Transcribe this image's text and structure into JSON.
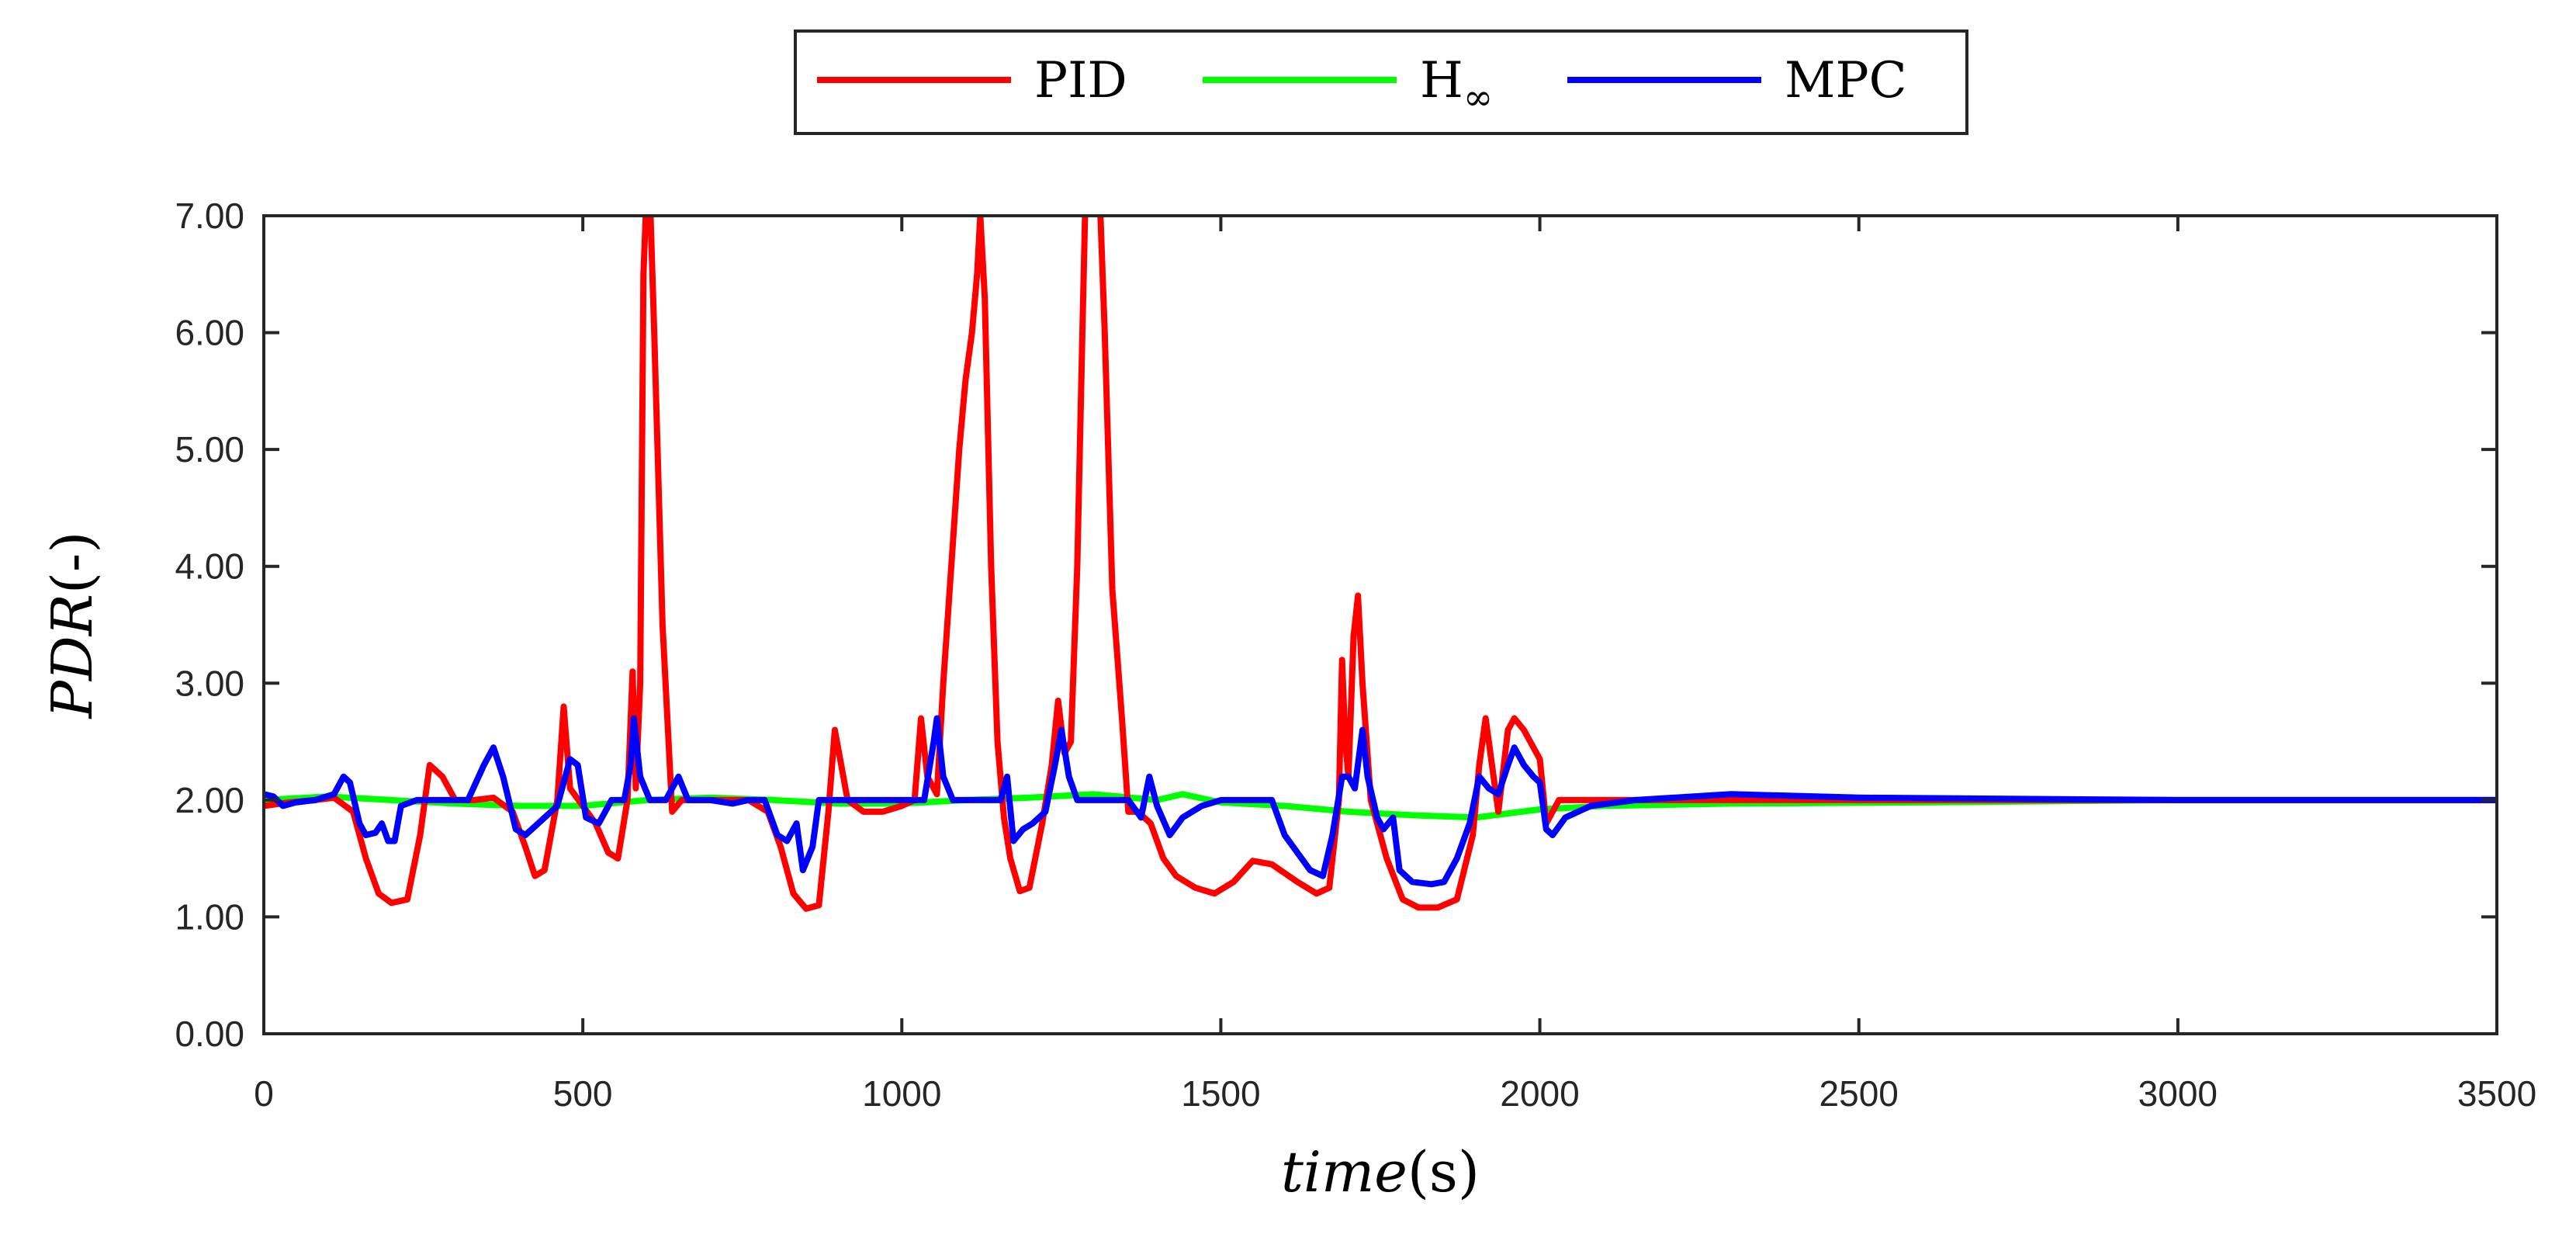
{
  "chart_data": {
    "type": "line",
    "title": "",
    "xlabel": {
      "italic": "time",
      "unit": "(s)"
    },
    "ylabel": {
      "italic": "PDR",
      "unit": "(-)"
    },
    "xlim": [
      0,
      3500
    ],
    "ylim": [
      0,
      7
    ],
    "xticks": [
      0,
      500,
      1000,
      1500,
      2000,
      2500,
      3000,
      3500
    ],
    "yticks": [
      0,
      1,
      2,
      3,
      4,
      5,
      6,
      7
    ],
    "xtick_labels": [
      "0",
      "500",
      "1000",
      "1500",
      "2000",
      "2500",
      "3000",
      "3500"
    ],
    "ytick_labels": [
      "0.00",
      "1.00",
      "2.00",
      "3.00",
      "4.00",
      "5.00",
      "6.00",
      "7.00"
    ],
    "grid": false,
    "legend": {
      "placement": "top-center",
      "entries": [
        {
          "label": "PID",
          "subscript": ""
        },
        {
          "label": "H",
          "subscript": "∞"
        },
        {
          "label": "MPC",
          "subscript": ""
        }
      ]
    },
    "series": [
      {
        "name": "PID",
        "color": "#ff0000",
        "points": [
          [
            0,
            1.95
          ],
          [
            40,
            1.98
          ],
          [
            80,
            2.0
          ],
          [
            110,
            2.02
          ],
          [
            140,
            1.9
          ],
          [
            160,
            1.5
          ],
          [
            180,
            1.2
          ],
          [
            200,
            1.12
          ],
          [
            225,
            1.15
          ],
          [
            245,
            1.7
          ],
          [
            260,
            2.3
          ],
          [
            280,
            2.2
          ],
          [
            300,
            2.0
          ],
          [
            330,
            2.0
          ],
          [
            360,
            2.02
          ],
          [
            390,
            1.9
          ],
          [
            410,
            1.6
          ],
          [
            425,
            1.35
          ],
          [
            440,
            1.4
          ],
          [
            460,
            2.0
          ],
          [
            470,
            2.8
          ],
          [
            480,
            2.1
          ],
          [
            500,
            1.95
          ],
          [
            520,
            1.8
          ],
          [
            540,
            1.55
          ],
          [
            555,
            1.5
          ],
          [
            570,
            2.0
          ],
          [
            578,
            3.1
          ],
          [
            583,
            2.1
          ],
          [
            590,
            3.0
          ],
          [
            595,
            6.5
          ],
          [
            600,
            7.2
          ],
          [
            605,
            7.2
          ],
          [
            612,
            6.0
          ],
          [
            625,
            3.5
          ],
          [
            640,
            1.9
          ],
          [
            655,
            2.0
          ],
          [
            700,
            2.0
          ],
          [
            760,
            2.0
          ],
          [
            790,
            1.9
          ],
          [
            810,
            1.6
          ],
          [
            830,
            1.2
          ],
          [
            850,
            1.07
          ],
          [
            870,
            1.1
          ],
          [
            885,
            1.9
          ],
          [
            895,
            2.6
          ],
          [
            905,
            2.3
          ],
          [
            915,
            2.0
          ],
          [
            940,
            1.9
          ],
          [
            970,
            1.9
          ],
          [
            1000,
            1.95
          ],
          [
            1020,
            2.0
          ],
          [
            1030,
            2.7
          ],
          [
            1040,
            2.2
          ],
          [
            1055,
            2.05
          ],
          [
            1065,
            3.0
          ],
          [
            1080,
            4.2
          ],
          [
            1090,
            5.0
          ],
          [
            1100,
            5.6
          ],
          [
            1110,
            6.0
          ],
          [
            1118,
            6.5
          ],
          [
            1123,
            7.0
          ],
          [
            1130,
            6.3
          ],
          [
            1140,
            4.0
          ],
          [
            1150,
            2.5
          ],
          [
            1160,
            1.85
          ],
          [
            1170,
            1.5
          ],
          [
            1185,
            1.22
          ],
          [
            1200,
            1.25
          ],
          [
            1220,
            1.8
          ],
          [
            1235,
            2.3
          ],
          [
            1245,
            2.85
          ],
          [
            1255,
            2.4
          ],
          [
            1265,
            2.5
          ],
          [
            1275,
            4.0
          ],
          [
            1283,
            6.0
          ],
          [
            1288,
            7.2
          ],
          [
            1300,
            7.2
          ],
          [
            1310,
            7.2
          ],
          [
            1318,
            6.0
          ],
          [
            1330,
            3.8
          ],
          [
            1345,
            2.7
          ],
          [
            1355,
            1.9
          ],
          [
            1370,
            1.9
          ],
          [
            1390,
            1.8
          ],
          [
            1410,
            1.5
          ],
          [
            1430,
            1.35
          ],
          [
            1460,
            1.25
          ],
          [
            1490,
            1.2
          ],
          [
            1520,
            1.3
          ],
          [
            1550,
            1.48
          ],
          [
            1580,
            1.45
          ],
          [
            1620,
            1.3
          ],
          [
            1650,
            1.2
          ],
          [
            1670,
            1.25
          ],
          [
            1685,
            2.0
          ],
          [
            1690,
            3.2
          ],
          [
            1695,
            2.5
          ],
          [
            1700,
            2.2
          ],
          [
            1708,
            3.4
          ],
          [
            1715,
            3.75
          ],
          [
            1722,
            3.0
          ],
          [
            1735,
            2.0
          ],
          [
            1760,
            1.5
          ],
          [
            1785,
            1.15
          ],
          [
            1810,
            1.08
          ],
          [
            1840,
            1.08
          ],
          [
            1870,
            1.15
          ],
          [
            1895,
            1.7
          ],
          [
            1905,
            2.3
          ],
          [
            1915,
            2.7
          ],
          [
            1925,
            2.3
          ],
          [
            1935,
            1.9
          ],
          [
            1950,
            2.6
          ],
          [
            1960,
            2.7
          ],
          [
            1975,
            2.6
          ],
          [
            1990,
            2.45
          ],
          [
            2000,
            2.35
          ],
          [
            2010,
            1.8
          ],
          [
            2030,
            2.0
          ],
          [
            2060,
            2.0
          ],
          [
            2100,
            2.0
          ],
          [
            2200,
            2.0
          ],
          [
            3500,
            2.0
          ]
        ]
      },
      {
        "name": "H∞",
        "color": "#00ff00",
        "points": [
          [
            0,
            2.0
          ],
          [
            100,
            2.03
          ],
          [
            200,
            2.0
          ],
          [
            300,
            1.97
          ],
          [
            400,
            1.95
          ],
          [
            500,
            1.95
          ],
          [
            600,
            2.0
          ],
          [
            700,
            2.02
          ],
          [
            800,
            2.0
          ],
          [
            900,
            1.97
          ],
          [
            1000,
            1.97
          ],
          [
            1100,
            2.0
          ],
          [
            1200,
            2.02
          ],
          [
            1300,
            2.05
          ],
          [
            1400,
            2.0
          ],
          [
            1440,
            2.05
          ],
          [
            1500,
            1.98
          ],
          [
            1600,
            1.95
          ],
          [
            1700,
            1.9
          ],
          [
            1800,
            1.87
          ],
          [
            1900,
            1.85
          ],
          [
            2000,
            1.92
          ],
          [
            2100,
            1.95
          ],
          [
            2300,
            1.97
          ],
          [
            2600,
            1.98
          ],
          [
            3000,
            2.0
          ],
          [
            3500,
            2.0
          ]
        ]
      },
      {
        "name": "MPC",
        "color": "#0000ff",
        "points": [
          [
            0,
            2.05
          ],
          [
            15,
            2.03
          ],
          [
            30,
            1.95
          ],
          [
            50,
            1.98
          ],
          [
            80,
            2.0
          ],
          [
            110,
            2.05
          ],
          [
            125,
            2.2
          ],
          [
            135,
            2.15
          ],
          [
            150,
            1.8
          ],
          [
            160,
            1.7
          ],
          [
            175,
            1.72
          ],
          [
            185,
            1.8
          ],
          [
            195,
            1.65
          ],
          [
            205,
            1.65
          ],
          [
            215,
            1.95
          ],
          [
            240,
            2.0
          ],
          [
            290,
            2.0
          ],
          [
            320,
            2.0
          ],
          [
            345,
            2.3
          ],
          [
            360,
            2.45
          ],
          [
            375,
            2.2
          ],
          [
            395,
            1.75
          ],
          [
            410,
            1.7
          ],
          [
            430,
            1.8
          ],
          [
            460,
            1.95
          ],
          [
            480,
            2.35
          ],
          [
            492,
            2.3
          ],
          [
            505,
            1.85
          ],
          [
            525,
            1.8
          ],
          [
            545,
            2.0
          ],
          [
            565,
            2.0
          ],
          [
            575,
            2.3
          ],
          [
            580,
            2.7
          ],
          [
            590,
            2.2
          ],
          [
            605,
            2.0
          ],
          [
            630,
            2.0
          ],
          [
            650,
            2.2
          ],
          [
            665,
            2.0
          ],
          [
            700,
            2.0
          ],
          [
            735,
            1.97
          ],
          [
            760,
            2.0
          ],
          [
            785,
            2.0
          ],
          [
            805,
            1.7
          ],
          [
            820,
            1.65
          ],
          [
            835,
            1.8
          ],
          [
            845,
            1.4
          ],
          [
            860,
            1.6
          ],
          [
            870,
            2.0
          ],
          [
            900,
            2.0
          ],
          [
            1000,
            2.0
          ],
          [
            1035,
            2.0
          ],
          [
            1050,
            2.5
          ],
          [
            1055,
            2.7
          ],
          [
            1065,
            2.2
          ],
          [
            1080,
            2.0
          ],
          [
            1120,
            2.0
          ],
          [
            1155,
            2.0
          ],
          [
            1165,
            2.2
          ],
          [
            1175,
            1.65
          ],
          [
            1190,
            1.75
          ],
          [
            1205,
            1.8
          ],
          [
            1225,
            1.9
          ],
          [
            1240,
            2.3
          ],
          [
            1250,
            2.6
          ],
          [
            1262,
            2.2
          ],
          [
            1275,
            2.0
          ],
          [
            1320,
            2.0
          ],
          [
            1355,
            2.0
          ],
          [
            1375,
            1.85
          ],
          [
            1388,
            2.2
          ],
          [
            1400,
            1.95
          ],
          [
            1420,
            1.7
          ],
          [
            1440,
            1.85
          ],
          [
            1470,
            1.95
          ],
          [
            1500,
            2.0
          ],
          [
            1540,
            2.0
          ],
          [
            1580,
            2.0
          ],
          [
            1600,
            1.7
          ],
          [
            1640,
            1.4
          ],
          [
            1660,
            1.35
          ],
          [
            1675,
            1.7
          ],
          [
            1690,
            2.2
          ],
          [
            1700,
            2.2
          ],
          [
            1710,
            2.1
          ],
          [
            1722,
            2.6
          ],
          [
            1730,
            2.2
          ],
          [
            1745,
            1.85
          ],
          [
            1755,
            1.75
          ],
          [
            1770,
            1.85
          ],
          [
            1780,
            1.4
          ],
          [
            1800,
            1.3
          ],
          [
            1830,
            1.28
          ],
          [
            1850,
            1.3
          ],
          [
            1870,
            1.5
          ],
          [
            1890,
            1.8
          ],
          [
            1905,
            2.2
          ],
          [
            1920,
            2.1
          ],
          [
            1935,
            2.05
          ],
          [
            1950,
            2.3
          ],
          [
            1960,
            2.45
          ],
          [
            1975,
            2.3
          ],
          [
            1990,
            2.2
          ],
          [
            2000,
            2.15
          ],
          [
            2010,
            1.75
          ],
          [
            2020,
            1.7
          ],
          [
            2040,
            1.85
          ],
          [
            2080,
            1.95
          ],
          [
            2150,
            2.0
          ],
          [
            2300,
            2.05
          ],
          [
            2500,
            2.02
          ],
          [
            3000,
            2.0
          ],
          [
            3500,
            2.0
          ]
        ]
      }
    ]
  }
}
